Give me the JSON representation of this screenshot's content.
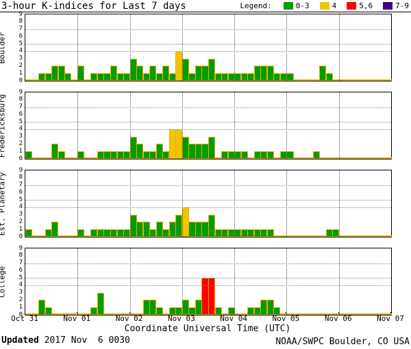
{
  "title": "3-hour K-indices for Last 7 days",
  "legend": {
    "label": "Legend:",
    "entries": [
      {
        "label": "0-3",
        "color": "#009c00"
      },
      {
        "label": "4",
        "color": "#f2c400"
      },
      {
        "label": "5,6",
        "color": "#ff0000"
      },
      {
        "label": "7-9",
        "color": "#400080"
      }
    ]
  },
  "xaxis_title": "Coordinate Universal Time (UTC)",
  "footer": {
    "updated_label": "Updated",
    "updated_value": " 2017 Nov  6 0030",
    "credit": "NOAA/SWPC Boulder, CO USA"
  },
  "chart_data": {
    "type": "bar",
    "description": "3-hour K-index bar charts, 8 bars per day for 7 days, one panel per station",
    "x_day_labels": [
      "Oct 31",
      "Nov 01",
      "Nov 02",
      "Nov 03",
      "Nov 04",
      "Nov 05",
      "Nov 06",
      "Nov 07"
    ],
    "bars_per_day": 8,
    "days": 7,
    "ylim": [
      0,
      9
    ],
    "yticks": [
      0,
      1,
      2,
      3,
      4,
      5,
      6,
      7,
      8,
      9
    ],
    "threshold_gridlines": [
      4,
      5,
      7
    ],
    "grid": "dotted vertical lines at day boundaries; dotted horizontal lines at K=4,5,7",
    "legend_position": "top-right",
    "color_rules": {
      "0-3": "#009c00",
      "4": "#f2c400",
      "5,6": "#ff0000",
      "7-9": "#400080"
    },
    "bar_outline_color": "#eaae00",
    "series": [
      {
        "name": "Boulder",
        "values_by_day": [
          [
            0,
            0,
            1,
            1,
            2,
            2,
            1,
            0
          ],
          [
            2,
            0,
            1,
            1,
            1,
            2,
            1,
            1
          ],
          [
            3,
            2,
            1,
            2,
            1,
            2,
            1,
            4
          ],
          [
            3,
            1,
            2,
            2,
            3,
            1,
            1,
            1
          ],
          [
            1,
            1,
            1,
            2,
            2,
            2,
            1,
            1
          ],
          [
            1,
            0,
            0,
            0,
            0,
            2,
            1,
            0
          ],
          [
            0,
            0,
            0,
            0,
            0,
            0,
            0,
            0
          ]
        ]
      },
      {
        "name": "Fredericksburg",
        "values_by_day": [
          [
            1,
            0,
            0,
            0,
            2,
            1,
            0,
            0
          ],
          [
            1,
            0,
            0,
            1,
            1,
            1,
            1,
            1
          ],
          [
            3,
            2,
            1,
            1,
            2,
            1,
            4,
            4
          ],
          [
            3,
            2,
            2,
            2,
            3,
            0,
            1,
            1
          ],
          [
            1,
            1,
            0,
            1,
            1,
            1,
            0,
            1
          ],
          [
            1,
            0,
            0,
            0,
            1,
            0,
            0,
            0
          ],
          [
            0,
            0,
            0,
            0,
            0,
            0,
            0,
            0
          ]
        ]
      },
      {
        "name": "Est. Planetary",
        "values_by_day": [
          [
            1,
            0,
            0,
            1,
            2,
            0,
            0,
            0
          ],
          [
            1,
            0,
            1,
            1,
            1,
            1,
            1,
            1
          ],
          [
            3,
            2,
            2,
            1,
            2,
            1,
            2,
            3
          ],
          [
            4,
            2,
            2,
            2,
            3,
            1,
            1,
            1
          ],
          [
            1,
            1,
            1,
            1,
            1,
            1,
            0,
            0
          ],
          [
            0,
            0,
            0,
            0,
            0,
            0,
            1,
            1
          ],
          [
            0,
            0,
            0,
            0,
            0,
            0,
            0,
            0
          ]
        ]
      },
      {
        "name": "College",
        "values_by_day": [
          [
            0,
            0,
            2,
            1,
            0,
            0,
            0,
            0
          ],
          [
            0,
            0,
            1,
            3,
            0,
            0,
            0,
            0
          ],
          [
            0,
            0,
            2,
            2,
            1,
            0,
            1,
            1
          ],
          [
            2,
            1,
            2,
            5,
            5,
            1,
            0,
            1
          ],
          [
            0,
            0,
            1,
            1,
            2,
            2,
            1,
            0
          ],
          [
            0,
            0,
            0,
            0,
            0,
            0,
            0,
            0
          ],
          [
            0,
            0,
            0,
            0,
            0,
            0,
            0,
            0
          ]
        ]
      }
    ]
  }
}
